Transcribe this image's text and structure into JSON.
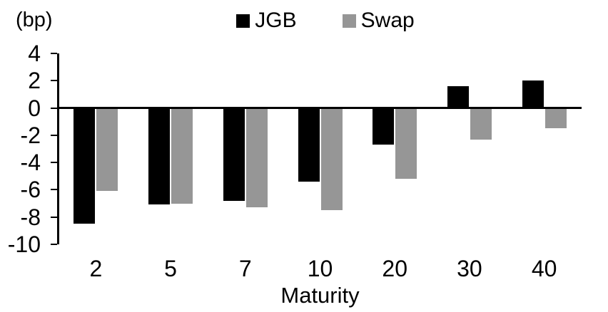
{
  "chart_data": {
    "type": "bar",
    "title": "",
    "unit_label": "(bp)",
    "xlabel": "Maturity",
    "categories": [
      "2",
      "5",
      "7",
      "10",
      "20",
      "30",
      "40"
    ],
    "series": [
      {
        "name": "JGB",
        "color": "#000000",
        "values": [
          -8.5,
          -7.1,
          -6.8,
          -5.4,
          -2.7,
          1.6,
          2.0
        ]
      },
      {
        "name": "Swap",
        "color": "#969696",
        "values": [
          -6.1,
          -7.0,
          -7.3,
          -7.5,
          -5.2,
          -2.3,
          -1.5
        ]
      }
    ],
    "y_ticks": [
      4,
      2,
      0,
      -2,
      -4,
      -6,
      -8,
      -10
    ],
    "ylim": [
      -10,
      4
    ],
    "grid": false,
    "legend_position": "top-center",
    "plot_background": "#ffffff",
    "axis_color": "#000000"
  }
}
